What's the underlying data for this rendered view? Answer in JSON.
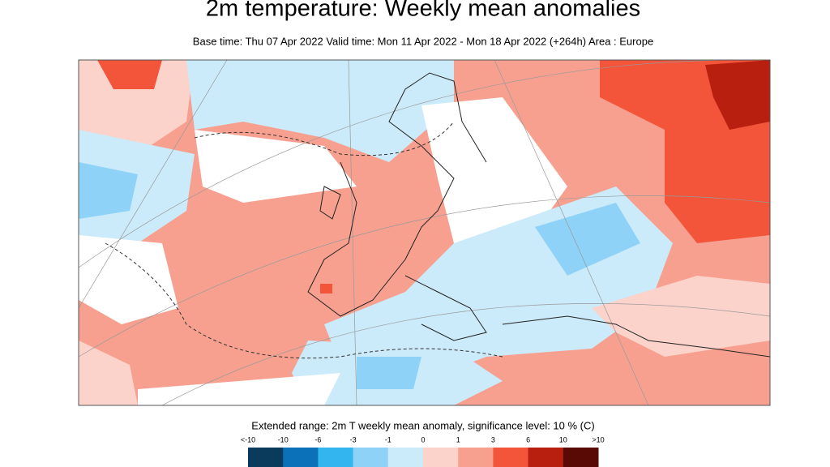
{
  "header": {
    "title": "2m temperature: Weekly mean anomalies",
    "subtitle": "Base time: Thu 07 Apr 2022 Valid time: Mon 11 Apr 2022 - Mon 18 Apr 2022 (+264h) Area : Europe"
  },
  "legend": {
    "title": "Extended range: 2m T weekly mean anomaly, significance level: 10 % (C)",
    "labels": [
      "<-10",
      "-10",
      "-6",
      "-3",
      "-1",
      "0",
      "1",
      "3",
      "6",
      "10",
      ">10"
    ],
    "colors": [
      "#0a3a5c",
      "#0b72b9",
      "#33b6f0",
      "#8ed3f7",
      "#cbeafa",
      "#fcd3cb",
      "#f7a08f",
      "#f2553a",
      "#b81f0f",
      "#5a0a05"
    ]
  }
}
